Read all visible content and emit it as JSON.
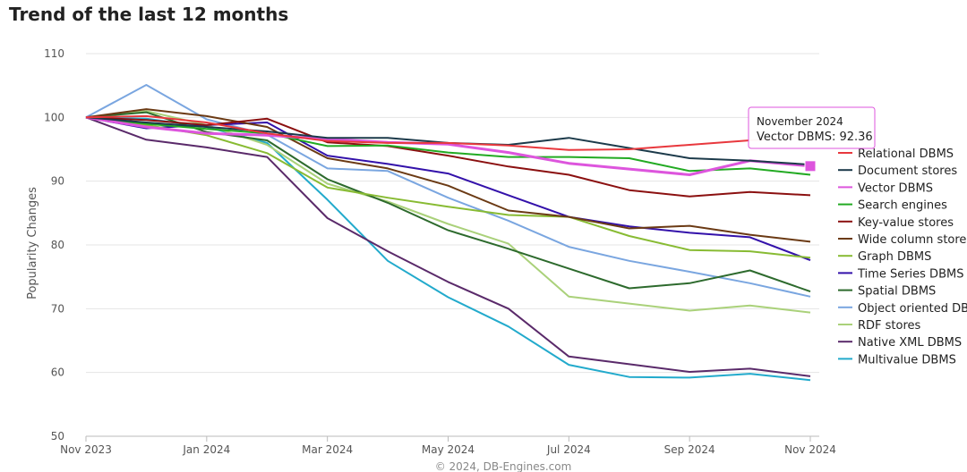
{
  "page": {
    "title": "Trend of the last 12 months"
  },
  "chart_data": {
    "type": "line",
    "title": "Trend of the last 12 months",
    "ylabel": "Popularity Changes",
    "ylim": [
      50,
      110
    ],
    "yticks": [
      50,
      60,
      70,
      80,
      90,
      100,
      110
    ],
    "grid": true,
    "legend_position": "right",
    "x": [
      0,
      1,
      2,
      3,
      4,
      5,
      6,
      7,
      8,
      9,
      10,
      11,
      12
    ],
    "xtick_positions": [
      0,
      2,
      4,
      6,
      8,
      10,
      12
    ],
    "xticks": [
      "Nov 2023",
      "Jan 2024",
      "Mar 2024",
      "May 2024",
      "Jul 2024",
      "Sep 2024",
      "Nov 2024"
    ],
    "series": [
      {
        "name": "Relational DBMS",
        "color": "#e8383d",
        "values": [
          100,
          100.2,
          99.2,
          97.5,
          96.3,
          96.0,
          96.0,
          95.6,
          94.9,
          95.0,
          95.7,
          96.4,
          96.9
        ]
      },
      {
        "name": "Document stores",
        "color": "#1c3a4a",
        "values": [
          100,
          99.2,
          98.5,
          97.8,
          96.8,
          96.8,
          96.0,
          95.7,
          96.8,
          95.2,
          93.6,
          93.2,
          92.6
        ]
      },
      {
        "name": "Vector DBMS",
        "color": "#dd55dd",
        "values": [
          100,
          98.5,
          97.5,
          97.2,
          96.6,
          96.1,
          95.8,
          94.5,
          92.8,
          91.9,
          91.0,
          93.2,
          92.36
        ]
      },
      {
        "name": "Search engines",
        "color": "#22aa22",
        "values": [
          100,
          99.0,
          98.2,
          97.5,
          95.5,
          95.6,
          94.5,
          93.8,
          93.8,
          93.6,
          91.6,
          92.0,
          91.0
        ]
      },
      {
        "name": "Key-value stores",
        "color": "#8b1010",
        "values": [
          100,
          99.6,
          98.8,
          99.8,
          96.1,
          95.5,
          94.0,
          92.3,
          91.0,
          88.6,
          87.6,
          88.3,
          87.8
        ]
      },
      {
        "name": "Wide column stores",
        "color": "#6b3a14",
        "values": [
          100,
          101.3,
          100.2,
          98.5,
          93.6,
          92.0,
          89.3,
          85.4,
          84.4,
          82.6,
          83.0,
          81.6,
          80.5
        ]
      },
      {
        "name": "Graph DBMS",
        "color": "#88bb33",
        "values": [
          100,
          98.8,
          97.2,
          94.4,
          89.0,
          87.4,
          86.0,
          84.7,
          84.4,
          81.4,
          79.2,
          79.0,
          78.0
        ]
      },
      {
        "name": "Time Series DBMS",
        "color": "#3311aa",
        "values": [
          100,
          98.3,
          98.8,
          99.2,
          94.0,
          92.7,
          91.2,
          87.8,
          84.4,
          82.9,
          81.9,
          81.2,
          77.6
        ]
      },
      {
        "name": "Spatial DBMS",
        "color": "#2d6a2d",
        "values": [
          100,
          100.8,
          97.7,
          96.4,
          90.3,
          86.6,
          82.3,
          79.4,
          76.3,
          73.2,
          74.0,
          76.0,
          72.7
        ]
      },
      {
        "name": "Object oriented DBMS",
        "color": "#7aa6e0",
        "values": [
          100,
          105.1,
          99.7,
          97.3,
          92.0,
          91.6,
          87.4,
          83.8,
          79.7,
          77.5,
          75.8,
          74.0,
          71.9
        ]
      },
      {
        "name": "RDF stores",
        "color": "#aad17a",
        "values": [
          100,
          101.0,
          98.8,
          95.7,
          89.6,
          86.8,
          83.3,
          80.2,
          71.9,
          70.8,
          69.7,
          70.5,
          69.4
        ]
      },
      {
        "name": "Native XML DBMS",
        "color": "#5a2a6a",
        "values": [
          100,
          96.5,
          95.3,
          93.8,
          84.2,
          79.0,
          74.2,
          70.0,
          62.5,
          61.3,
          60.1,
          60.6,
          59.4
        ]
      },
      {
        "name": "Multivalue DBMS",
        "color": "#22aacc",
        "values": [
          100,
          99.8,
          98.5,
          96.0,
          87.1,
          77.5,
          71.8,
          67.2,
          61.2,
          59.3,
          59.2,
          59.8,
          58.8
        ]
      }
    ],
    "tooltip": {
      "title": "November 2024",
      "series": "Vector DBMS",
      "value": "92.36",
      "label": "Vector DBMS: 92.36"
    },
    "credit": "© 2024, DB-Engines.com"
  }
}
